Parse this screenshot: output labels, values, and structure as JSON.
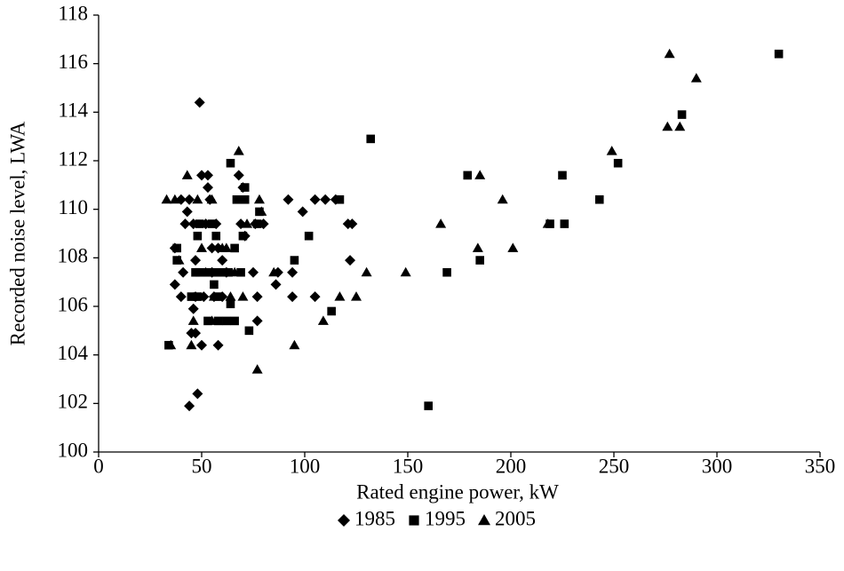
{
  "chart_data": {
    "type": "scatter",
    "xlabel": "Rated engine power, kW",
    "ylabel": "Recorded noise level, LWA",
    "xlim": [
      0,
      350
    ],
    "xticks": [
      0,
      50,
      100,
      150,
      200,
      250,
      300,
      350
    ],
    "ylim": [
      100,
      118
    ],
    "yticks": [
      100,
      102,
      104,
      106,
      108,
      110,
      112,
      114,
      116,
      118
    ],
    "grid": false,
    "legend": "bottom",
    "series": [
      {
        "name": "1985",
        "marker": "diamond",
        "color": "#000000",
        "x": [
          49,
          44,
          48,
          37,
          37,
          40,
          42,
          43,
          44,
          46,
          50,
          53,
          53,
          54,
          52,
          47,
          47,
          46,
          45,
          47,
          50,
          58,
          41,
          55,
          57,
          58,
          60,
          62,
          68,
          70,
          69,
          71,
          75,
          77,
          77,
          76,
          80,
          86,
          87,
          92,
          94,
          94,
          99,
          105,
          105,
          110,
          115,
          121,
          123,
          122,
          40,
          51,
          56,
          60,
          55
        ],
        "y": [
          114.4,
          101.9,
          102.4,
          108.4,
          106.9,
          110.4,
          109.4,
          109.9,
          110.4,
          109.4,
          111.4,
          111.4,
          110.9,
          110.4,
          109.4,
          107.9,
          106.4,
          105.9,
          104.9,
          104.9,
          104.4,
          104.4,
          107.4,
          107.4,
          109.4,
          108.4,
          107.9,
          107.4,
          111.4,
          110.9,
          109.4,
          108.9,
          107.4,
          106.4,
          105.4,
          109.4,
          109.4,
          106.9,
          107.4,
          110.4,
          107.4,
          106.4,
          109.9,
          110.4,
          106.4,
          110.4,
          110.4,
          109.4,
          109.4,
          107.9,
          106.4,
          106.4,
          106.4,
          106.4,
          108.4
        ]
      },
      {
        "name": "1995",
        "marker": "square",
        "color": "#000000",
        "x": [
          34,
          38,
          38,
          45,
          48,
          49,
          49,
          48,
          53,
          53,
          55,
          56,
          57,
          58,
          58,
          57,
          62,
          63,
          64,
          64,
          66,
          66,
          67,
          69,
          70,
          71,
          71,
          73,
          77,
          78,
          95,
          102,
          113,
          117,
          132,
          160,
          169,
          179,
          185,
          219,
          225,
          226,
          243,
          252,
          283,
          330,
          47,
          61
        ],
        "y": [
          104.4,
          108.4,
          107.9,
          106.4,
          106.4,
          107.4,
          109.4,
          108.9,
          107.4,
          105.4,
          109.4,
          106.9,
          107.4,
          106.4,
          105.4,
          108.9,
          105.4,
          107.4,
          111.9,
          106.1,
          105.4,
          108.4,
          110.4,
          107.4,
          108.9,
          110.4,
          110.9,
          105.0,
          109.4,
          109.9,
          107.9,
          108.9,
          105.8,
          110.4,
          112.9,
          101.9,
          107.4,
          111.4,
          107.9,
          109.4,
          111.4,
          109.4,
          110.4,
          111.9,
          113.9,
          116.4,
          107.4,
          107.4
        ]
      },
      {
        "name": "2005",
        "marker": "triangle",
        "color": "#000000",
        "x": [
          33,
          35,
          37,
          39,
          43,
          45,
          46,
          48,
          50,
          52,
          55,
          56,
          60,
          62,
          64,
          66,
          68,
          70,
          72,
          77,
          78,
          79,
          85,
          95,
          109,
          117,
          125,
          130,
          149,
          166,
          184,
          185,
          196,
          201,
          218,
          249,
          276,
          277,
          282,
          290,
          55
        ],
        "y": [
          110.4,
          104.4,
          110.4,
          107.9,
          111.4,
          104.4,
          105.4,
          110.4,
          108.4,
          107.4,
          110.4,
          106.4,
          108.4,
          108.4,
          106.4,
          107.4,
          112.4,
          106.4,
          109.4,
          103.4,
          110.4,
          109.9,
          107.4,
          104.4,
          105.4,
          106.4,
          106.4,
          107.4,
          107.4,
          109.4,
          108.4,
          111.4,
          110.4,
          108.4,
          109.4,
          112.4,
          113.4,
          116.4,
          113.4,
          115.4,
          105.4
        ]
      }
    ]
  }
}
